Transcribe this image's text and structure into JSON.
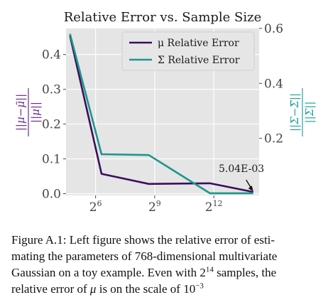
{
  "chart_data": {
    "type": "line",
    "title": "Relative Error vs. Sample Size",
    "xlabel": "",
    "x_scale": "log2",
    "x_exponents": [
      4.7,
      6.3,
      8.7,
      11.8,
      14.0
    ],
    "x_ticks": [
      {
        "exp": 6,
        "label": "2",
        "sup": "6"
      },
      {
        "exp": 9,
        "label": "2",
        "sup": "9"
      },
      {
        "exp": 12,
        "label": "2",
        "sup": "12"
      }
    ],
    "xlim_exp": [
      4.5,
      14.3
    ],
    "left_axis": {
      "ylabel_num": "||μ−μ̃||",
      "ylabel_den": "||μ||",
      "ylim": [
        -0.005,
        0.475
      ],
      "ticks": [
        0.0,
        0.1,
        0.2,
        0.3,
        0.4
      ],
      "tick_labels": [
        "0.0",
        "0.1",
        "0.2",
        "0.3",
        "0.4"
      ],
      "color": "#3b0f5e"
    },
    "right_axis": {
      "ylabel_num": "||Σ−Σ̃||",
      "ylabel_den": "||Σ||",
      "ylim": [
        -0.008,
        0.6
      ],
      "ticks": [
        0.2,
        0.4,
        0.6
      ],
      "tick_labels": [
        "0.2",
        "0.4",
        "0.6"
      ],
      "color": "#21a39a"
    },
    "series": [
      {
        "name": "μ Relative Error",
        "axis": "left",
        "color": "#3b0f5e",
        "values": [
          0.454,
          0.057,
          0.028,
          0.03,
          0.00504
        ]
      },
      {
        "name": "Σ Relative Error",
        "axis": "right",
        "color": "#1e958e",
        "values": [
          0.58,
          0.142,
          0.139,
          0.0,
          0.0
        ]
      }
    ],
    "legend_position": "top-right",
    "grid": true,
    "annotation": {
      "text": "5.04E-03",
      "x_exp": 14.0,
      "series": 0
    }
  },
  "caption": {
    "line1": "Figure A.1: Left figure shows the relative error of esti-",
    "line2": "mating the parameters of 768-dimensional multivariate",
    "line3a": "Gaussian on a toy example. Even with ",
    "line3_base": "2",
    "line3_sup": "14",
    "line3b": " samples, the",
    "line4a": "relative error of ",
    "line4_mu": "μ",
    "line4b": " is on the scale of ",
    "line4_base": "10",
    "line4_sup": "−3"
  }
}
